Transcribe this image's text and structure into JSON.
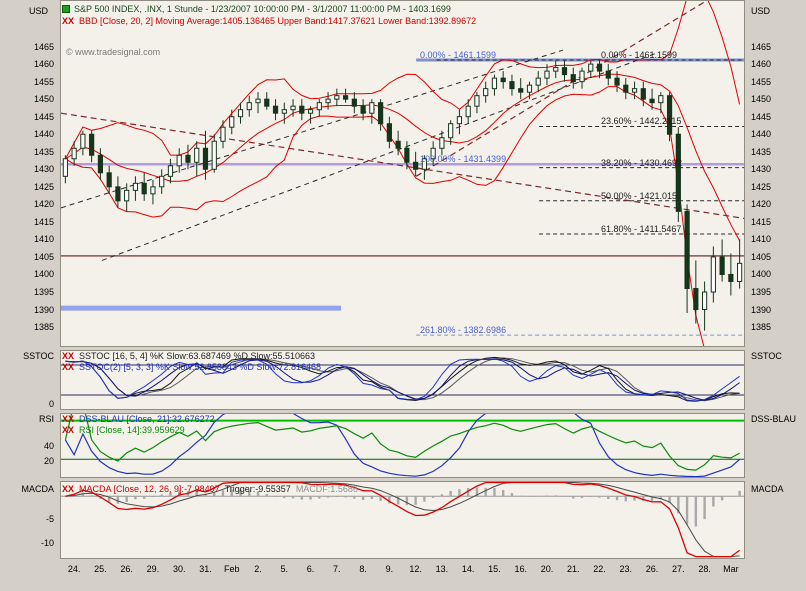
{
  "main": {
    "title": "S&P 500 INDEX, .INX, 1 Stunde - 1/23/2007 10:00:00 PM - 3/1/2007 11:00:00 PM - 1403.1699",
    "bbd_xx": "XX",
    "bbd_text": "BBD [Close, 20, 2] Moving Average:1405.136465 Upper Band:1417.37621 Lower Band:1392.89672",
    "watermark": "© www.tradesignal.com"
  },
  "axes": {
    "usd_left": "USD",
    "usd_right": "USD",
    "main_ticks": [
      "1465",
      "1460",
      "1455",
      "1450",
      "1445",
      "1440",
      "1435",
      "1430",
      "1425",
      "1420",
      "1415",
      "1410",
      "1405",
      "1400",
      "1395",
      "1390",
      "1385"
    ],
    "sstoc_ticks": [
      "0"
    ],
    "rsi_ticks": [
      "40",
      "20"
    ],
    "macd_ticks": [
      "-5",
      "-10"
    ],
    "x_labels": [
      "24.",
      "25.",
      "26.",
      "29.",
      "30.",
      "31.",
      "Feb",
      "2.",
      "5.",
      "6.",
      "7.",
      "8.",
      "9.",
      "12.",
      "13.",
      "14.",
      "15.",
      "16.",
      "20.",
      "21.",
      "22.",
      "23.",
      "26.",
      "27.",
      "28.",
      "Mar"
    ]
  },
  "panels": {
    "sstoc": {
      "left_label": "SSTOC",
      "right_label": "SSTOC",
      "row1_xx": "XX",
      "row1": "SSTOC [16, 5, 4] %K Slow:63.687469 %D Slow:55.510663",
      "row2_xx": "XX",
      "row2": "SSTOC(2) [5, 3, 3] %K Slow:52.858843 %D Slow:72.816468"
    },
    "rsi": {
      "left_label": "RSI",
      "right_label": "DSS-BLAU",
      "row1_xx": "XX",
      "row1": "DSS-BLAU [Close, 21]:32.676272",
      "row2_xx": "XX",
      "row2": "RSI [Close, 14]:39.959629"
    },
    "macd": {
      "left_label": "MACDA",
      "right_label": "MACDA",
      "xx": "XX",
      "part_red": "MACDA [Close, 12, 26, 9]:-7.98497",
      "part_dark": "Trigger:-9.55357",
      "part_gray": "MACDF:1.5686"
    }
  },
  "chart_data": {
    "type": "candlestick",
    "instrument": "S&P 500 INDEX, .INX",
    "interval": "1 Stunde",
    "date_range": "1/23/2007 10:00:00 PM - 3/1/2007 11:00:00 PM",
    "last_price": 1403.1699,
    "price_range": [
      1379.6,
      1478
    ],
    "bars_per_day": 3,
    "days": [
      "24.",
      "25.",
      "26.",
      "29.",
      "30.",
      "31.",
      "Feb",
      "2.",
      "5.",
      "6.",
      "7.",
      "8.",
      "9.",
      "12.",
      "13.",
      "14.",
      "15.",
      "16.",
      "20.",
      "21.",
      "22.",
      "23.",
      "26.",
      "27.",
      "28.",
      "Mar"
    ],
    "ohlc": [
      [
        1428,
        1434,
        1426,
        1433
      ],
      [
        1433,
        1438,
        1431,
        1436
      ],
      [
        1436,
        1441,
        1434,
        1440
      ],
      [
        1440,
        1441,
        1432,
        1434
      ],
      [
        1434,
        1436,
        1427,
        1429
      ],
      [
        1429,
        1431,
        1423,
        1425
      ],
      [
        1425,
        1428,
        1419,
        1421
      ],
      [
        1421,
        1426,
        1418,
        1424
      ],
      [
        1424,
        1428,
        1421,
        1426
      ],
      [
        1426,
        1429,
        1421,
        1423
      ],
      [
        1423,
        1427,
        1420,
        1425
      ],
      [
        1425,
        1430,
        1423,
        1428
      ],
      [
        1428,
        1433,
        1426,
        1431
      ],
      [
        1431,
        1436,
        1429,
        1434
      ],
      [
        1434,
        1437,
        1430,
        1432
      ],
      [
        1432,
        1438,
        1428,
        1436
      ],
      [
        1436,
        1441,
        1427,
        1430
      ],
      [
        1430,
        1440,
        1429,
        1438
      ],
      [
        1438,
        1444,
        1436,
        1442
      ],
      [
        1442,
        1447,
        1440,
        1445
      ],
      [
        1445,
        1449,
        1443,
        1447
      ],
      [
        1447,
        1451,
        1445,
        1449
      ],
      [
        1449,
        1452,
        1446,
        1450
      ],
      [
        1450,
        1452,
        1447,
        1448
      ],
      [
        1448,
        1450,
        1444,
        1446
      ],
      [
        1446,
        1449,
        1443,
        1447
      ],
      [
        1447,
        1450,
        1445,
        1448
      ],
      [
        1448,
        1450,
        1444,
        1446
      ],
      [
        1446,
        1448,
        1443,
        1447
      ],
      [
        1447,
        1450,
        1445,
        1449
      ],
      [
        1449,
        1452,
        1447,
        1450
      ],
      [
        1450,
        1453,
        1448,
        1451
      ],
      [
        1451,
        1453,
        1449,
        1450
      ],
      [
        1450,
        1452,
        1446,
        1448
      ],
      [
        1448,
        1450,
        1444,
        1446
      ],
      [
        1446,
        1450,
        1443,
        1449
      ],
      [
        1449,
        1450,
        1441,
        1443
      ],
      [
        1443,
        1445,
        1436,
        1438
      ],
      [
        1438,
        1441,
        1434,
        1436
      ],
      [
        1436,
        1438,
        1430,
        1432
      ],
      [
        1432,
        1435,
        1428,
        1430
      ],
      [
        1430,
        1434,
        1427,
        1433
      ],
      [
        1433,
        1438,
        1431,
        1436
      ],
      [
        1436,
        1441,
        1434,
        1439
      ],
      [
        1439,
        1444,
        1437,
        1443
      ],
      [
        1443,
        1447,
        1440,
        1445
      ],
      [
        1445,
        1450,
        1443,
        1448
      ],
      [
        1448,
        1452,
        1446,
        1451
      ],
      [
        1451,
        1455,
        1449,
        1453
      ],
      [
        1453,
        1457,
        1451,
        1456
      ],
      [
        1456,
        1458,
        1453,
        1455
      ],
      [
        1455,
        1457,
        1451,
        1453
      ],
      [
        1453,
        1456,
        1450,
        1452
      ],
      [
        1452,
        1455,
        1450,
        1454
      ],
      [
        1454,
        1458,
        1452,
        1456
      ],
      [
        1456,
        1460,
        1454,
        1458
      ],
      [
        1458,
        1461,
        1456,
        1459
      ],
      [
        1459,
        1461,
        1455,
        1457
      ],
      [
        1457,
        1459,
        1453,
        1455
      ],
      [
        1455,
        1459,
        1453,
        1458
      ],
      [
        1458,
        1461,
        1456,
        1460
      ],
      [
        1460,
        1461,
        1456,
        1458
      ],
      [
        1458,
        1460,
        1454,
        1456
      ],
      [
        1456,
        1458,
        1452,
        1454
      ],
      [
        1454,
        1456,
        1450,
        1452
      ],
      [
        1452,
        1455,
        1450,
        1453
      ],
      [
        1453,
        1455,
        1448,
        1450
      ],
      [
        1450,
        1453,
        1447,
        1449
      ],
      [
        1449,
        1452,
        1446,
        1451
      ],
      [
        1451,
        1452,
        1438,
        1440
      ],
      [
        1440,
        1442,
        1415,
        1418
      ],
      [
        1418,
        1420,
        1389,
        1396
      ],
      [
        1396,
        1404,
        1386,
        1390
      ],
      [
        1390,
        1398,
        1384,
        1395
      ],
      [
        1395,
        1408,
        1392,
        1405
      ],
      [
        1405,
        1410,
        1398,
        1400
      ],
      [
        1400,
        1406,
        1394,
        1398
      ],
      [
        1398,
        1410,
        1396,
        1403.17
      ]
    ],
    "indicators": {
      "bollinger": {
        "label": "BBD [Close, 20, 2]",
        "ma": 1405.136465,
        "upper": 1417.37621,
        "lower": 1392.89672
      },
      "sstoc1": {
        "label": "SSTOC [16, 5, 4]",
        "k_slow": 63.687469,
        "d_slow": 55.510663
      },
      "sstoc2": {
        "label": "SSTOC(2) [5, 3, 3]",
        "k_slow": 52.858843,
        "d_slow": 72.816468
      },
      "dss_blau": {
        "label": "DSS-BLAU [Close, 21]",
        "value": 32.676272
      },
      "rsi": {
        "label": "RSI [Close, 14]",
        "value": 39.959629
      },
      "macda": {
        "label": "MACDA [Close, 12, 26, 9]",
        "value": -7.98497,
        "trigger": -9.55357,
        "macdf": 1.5686
      }
    },
    "render_periods": {
      "bb": [
        10,
        2
      ],
      "stoch1": [
        10,
        3,
        3
      ],
      "stoch2": [
        5,
        3,
        3
      ],
      "rsi": 10,
      "dss": 14,
      "macd": [
        6,
        13,
        5
      ]
    },
    "fib_labels": [
      {
        "text": "0.00% - 1461.1599",
        "price": 1461.1599,
        "x": 0.525,
        "color": "#4a5fd0"
      },
      {
        "text": "100.00% - 1431.4399",
        "price": 1431.4399,
        "x": 0.525,
        "color": "#4a5fd0"
      },
      {
        "text": "261.80% - 1382.6986",
        "price": 1382.6986,
        "x": 0.525,
        "color": "#4a5fd0"
      },
      {
        "text": "0.00% - 1461.1599",
        "price": 1461.1599,
        "x": 0.79,
        "color": "#1c1c1c"
      },
      {
        "text": "23.60% - 1442.2115",
        "price": 1442.2115,
        "x": 0.79,
        "color": "#1c1c1c"
      },
      {
        "text": "38.20% - 1430.4692",
        "price": 1430.4692,
        "x": 0.79,
        "color": "#1c1c1c"
      },
      {
        "text": "50.00% - 1421.015",
        "price": 1421.015,
        "x": 0.79,
        "color": "#1c1c1c"
      },
      {
        "text": "61.80% - 1411.5467",
        "price": 1411.5467,
        "x": 0.79,
        "color": "#1c1c1c"
      }
    ],
    "levels_lines": [
      {
        "price": 1461.1599,
        "color": "#8092cc",
        "w": 3,
        "x0": 0.52,
        "x1": 1.0
      },
      {
        "price": 1431.4399,
        "color": "#b49ade",
        "w": 2.5,
        "x0": 0,
        "x1": 1.0
      },
      {
        "price": 1405.3,
        "color": "#8a4f4f",
        "w": 1.5,
        "x0": 0,
        "x1": 1.0
      },
      {
        "price": 1390.4,
        "color": "#92a2ec",
        "w": 5,
        "x0": 0,
        "x1": 0.41
      },
      {
        "price": 1382.6986,
        "color": "#8092cc",
        "w": 1,
        "x0": 0.52,
        "x1": 1.0,
        "dash": "4,3"
      },
      {
        "price": 1461.1599,
        "color": "#2a2a2a",
        "w": 1,
        "x0": 0.55,
        "x1": 1.0,
        "dash": "4,3"
      },
      {
        "price": 1442.2115,
        "color": "#2a2a2a",
        "w": 1,
        "x0": 0.7,
        "x1": 1.0,
        "dash": "4,3"
      },
      {
        "price": 1430.4692,
        "color": "#2a2a2a",
        "w": 1,
        "x0": 0.7,
        "x1": 1.0,
        "dash": "4,3"
      },
      {
        "price": 1421.015,
        "color": "#2a2a2a",
        "w": 1,
        "x0": 0.7,
        "x1": 1.0,
        "dash": "4,3"
      },
      {
        "price": 1411.5467,
        "color": "#2a2a2a",
        "w": 1,
        "x0": 0.7,
        "x1": 1.0,
        "dash": "4,3"
      }
    ],
    "trendlines": [
      {
        "x0": 0,
        "p0": 1419,
        "x1": 0.735,
        "p1": 1464,
        "color": "#2a2a2a",
        "w": 1,
        "dash": "5,4"
      },
      {
        "x0": 0.06,
        "p0": 1404,
        "x1": 0.87,
        "p1": 1463,
        "color": "#2a2a2a",
        "w": 1,
        "dash": "5,4"
      },
      {
        "x0": 0,
        "p0": 1446,
        "x1": 1.0,
        "p1": 1416,
        "color": "#7c2a2a",
        "w": 1.2,
        "dash": "6,4"
      },
      {
        "x0": 0.52,
        "p0": 1428,
        "x1": 0.97,
        "p1": 1481,
        "color": "#7c2a2a",
        "w": 1.2,
        "dash": "6,4"
      }
    ],
    "colors": {
      "bollinger": "#e00000",
      "candle_outline": "#17351b",
      "candle_up": "#ffffff",
      "candle_down": "#17351b",
      "macd_line": "#dd0000",
      "trigger_line": "#4a4a4a",
      "histogram": "#a8a8a8",
      "rsi_line": "#0a8a0a",
      "dss_line": "#2233bb",
      "stoch_black": "#151515",
      "stoch_blue": "#2233cc"
    }
  }
}
